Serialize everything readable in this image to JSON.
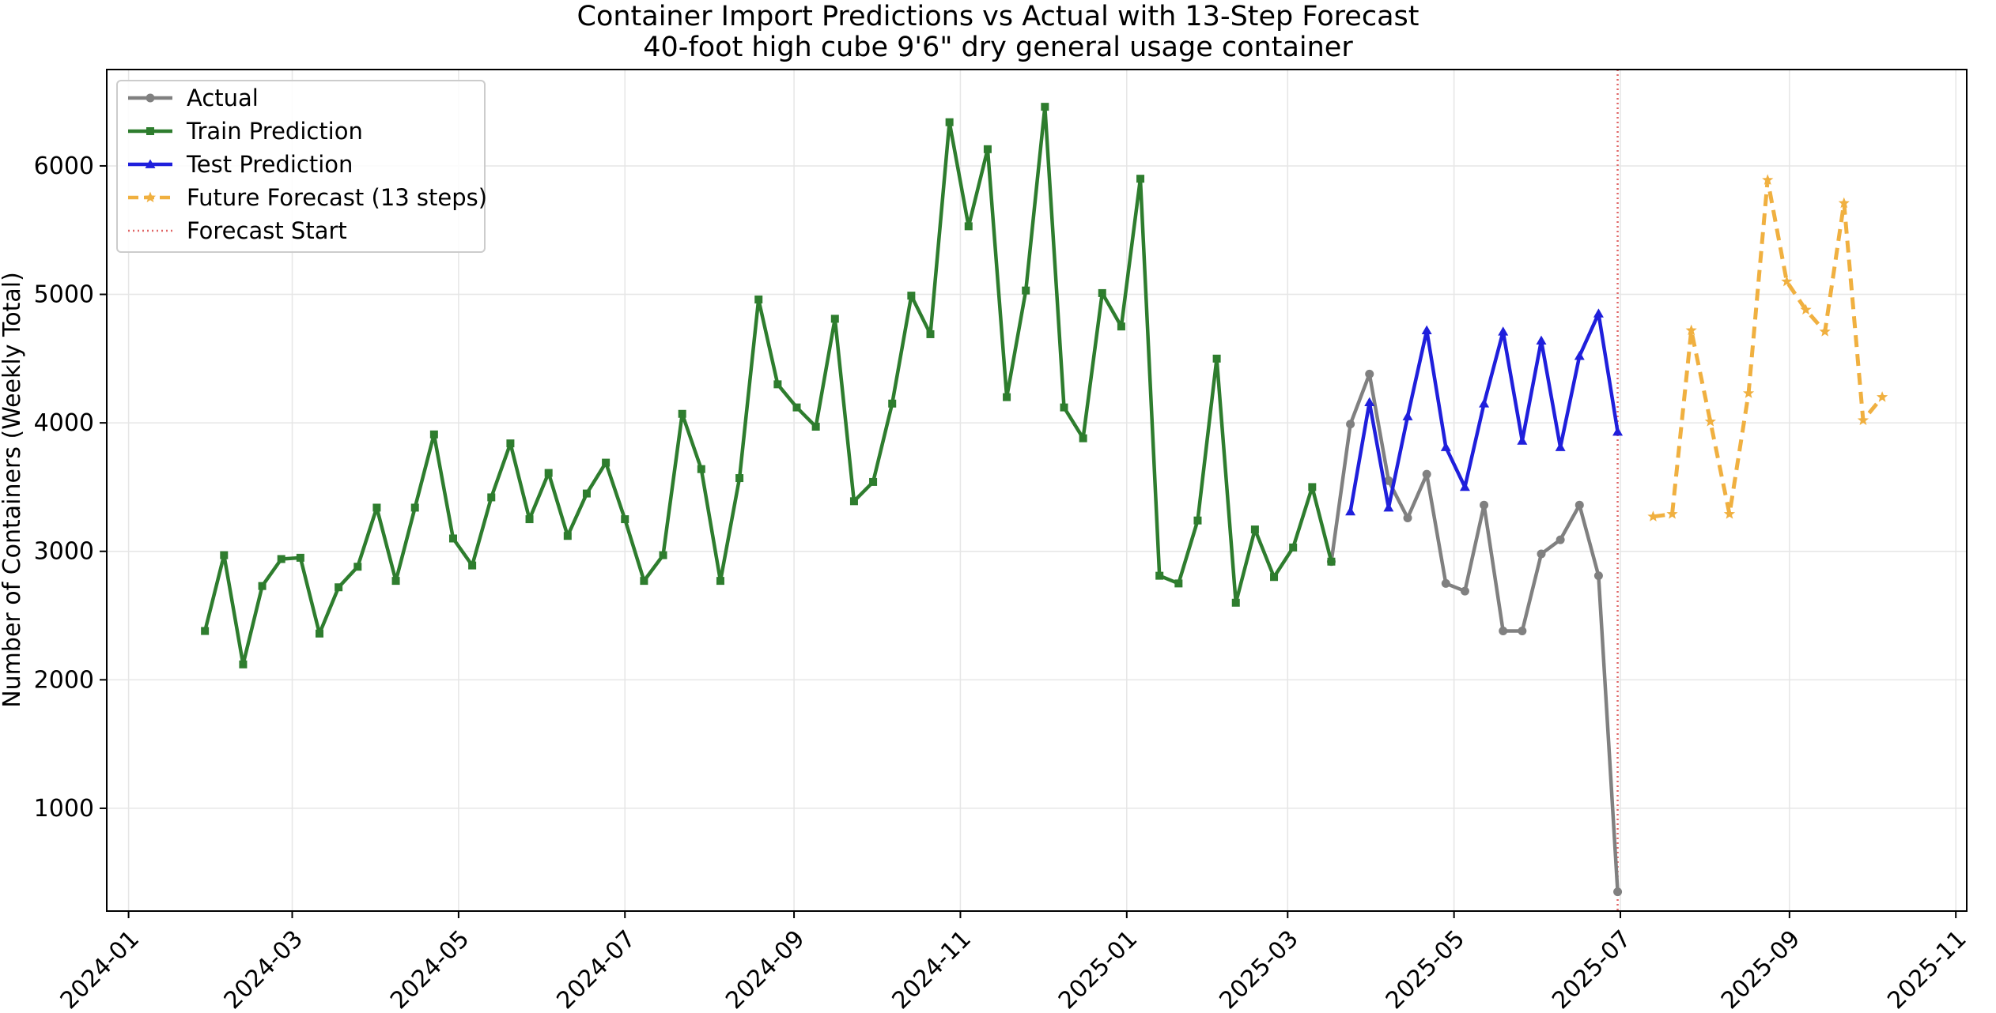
{
  "chart_data": {
    "type": "line",
    "title": "Container Import Predictions vs Actual with 13-Step Forecast",
    "subtitle": "40-foot high cube 9'6\" dry general usage container",
    "ylabel": "Number of Containers (Weekly Total)",
    "xlabel": "",
    "x_range": [
      "2023-12-24",
      "2025-11-05"
    ],
    "ylim": [
      200,
      6750
    ],
    "grid": true,
    "legend_position": "top-left",
    "x_ticks": [
      "2024-01",
      "2024-03",
      "2024-05",
      "2024-07",
      "2024-09",
      "2024-11",
      "2025-01",
      "2025-03",
      "2025-05",
      "2025-07",
      "2025-09",
      "2025-11"
    ],
    "y_ticks": [
      1000,
      2000,
      3000,
      4000,
      5000,
      6000
    ],
    "vline": {
      "label": "Forecast Start",
      "x": "2025-06-30",
      "color": "#e06666"
    },
    "series": [
      {
        "name": "Actual",
        "color": "#808080",
        "marker": "circle",
        "style": "solid",
        "points": [
          [
            "2025-03-17",
            2920
          ],
          [
            "2025-03-24",
            3990
          ],
          [
            "2025-03-31",
            4380
          ],
          [
            "2025-04-07",
            3550
          ],
          [
            "2025-04-14",
            3260
          ],
          [
            "2025-04-21",
            3600
          ],
          [
            "2025-04-28",
            2750
          ],
          [
            "2025-05-05",
            2690
          ],
          [
            "2025-05-12",
            3360
          ],
          [
            "2025-05-19",
            2380
          ],
          [
            "2025-05-26",
            2380
          ],
          [
            "2025-06-02",
            2980
          ],
          [
            "2025-06-09",
            3090
          ],
          [
            "2025-06-16",
            3360
          ],
          [
            "2025-06-23",
            2810
          ],
          [
            "2025-06-30",
            350
          ]
        ]
      },
      {
        "name": "Train Prediction",
        "color": "#2e7d2e",
        "marker": "square",
        "style": "solid",
        "points": [
          [
            "2024-01-29",
            2380
          ],
          [
            "2024-02-05",
            2970
          ],
          [
            "2024-02-12",
            2120
          ],
          [
            "2024-02-19",
            2730
          ],
          [
            "2024-02-26",
            2940
          ],
          [
            "2024-03-04",
            2950
          ],
          [
            "2024-03-11",
            2360
          ],
          [
            "2024-03-18",
            2720
          ],
          [
            "2024-03-25",
            2880
          ],
          [
            "2024-04-01",
            3340
          ],
          [
            "2024-04-08",
            2770
          ],
          [
            "2024-04-15",
            3340
          ],
          [
            "2024-04-22",
            3910
          ],
          [
            "2024-04-29",
            3100
          ],
          [
            "2024-05-06",
            2890
          ],
          [
            "2024-05-13",
            3420
          ],
          [
            "2024-05-20",
            3840
          ],
          [
            "2024-05-27",
            3250
          ],
          [
            "2024-06-03",
            3610
          ],
          [
            "2024-06-10",
            3120
          ],
          [
            "2024-06-17",
            3450
          ],
          [
            "2024-06-24",
            3690
          ],
          [
            "2024-07-01",
            3250
          ],
          [
            "2024-07-08",
            2770
          ],
          [
            "2024-07-15",
            2970
          ],
          [
            "2024-07-22",
            4070
          ],
          [
            "2024-07-29",
            3640
          ],
          [
            "2024-08-05",
            2770
          ],
          [
            "2024-08-12",
            3570
          ],
          [
            "2024-08-19",
            4960
          ],
          [
            "2024-08-26",
            4300
          ],
          [
            "2024-09-02",
            4120
          ],
          [
            "2024-09-09",
            3970
          ],
          [
            "2024-09-16",
            4810
          ],
          [
            "2024-09-23",
            3390
          ],
          [
            "2024-09-30",
            3540
          ],
          [
            "2024-10-07",
            4150
          ],
          [
            "2024-10-14",
            4990
          ],
          [
            "2024-10-21",
            4690
          ],
          [
            "2024-10-28",
            6340
          ],
          [
            "2024-11-04",
            5530
          ],
          [
            "2024-11-11",
            6130
          ],
          [
            "2024-11-18",
            4200
          ],
          [
            "2024-11-25",
            5030
          ],
          [
            "2024-12-02",
            6460
          ],
          [
            "2024-12-09",
            4120
          ],
          [
            "2024-12-16",
            3880
          ],
          [
            "2024-12-23",
            5010
          ],
          [
            "2024-12-30",
            4750
          ],
          [
            "2025-01-06",
            5900
          ],
          [
            "2025-01-13",
            2810
          ],
          [
            "2025-01-20",
            2750
          ],
          [
            "2025-01-27",
            3240
          ],
          [
            "2025-02-03",
            4500
          ],
          [
            "2025-02-10",
            2600
          ],
          [
            "2025-02-17",
            3170
          ],
          [
            "2025-02-24",
            2800
          ],
          [
            "2025-03-03",
            3030
          ],
          [
            "2025-03-10",
            3500
          ],
          [
            "2025-03-17",
            2920
          ]
        ]
      },
      {
        "name": "Test Prediction",
        "color": "#1f1fdc",
        "marker": "triangle",
        "style": "solid",
        "points": [
          [
            "2025-03-24",
            3310
          ],
          [
            "2025-03-31",
            4160
          ],
          [
            "2025-04-07",
            3340
          ],
          [
            "2025-04-14",
            4050
          ],
          [
            "2025-04-21",
            4720
          ],
          [
            "2025-04-28",
            3810
          ],
          [
            "2025-05-05",
            3500
          ],
          [
            "2025-05-12",
            4150
          ],
          [
            "2025-05-19",
            4710
          ],
          [
            "2025-05-26",
            3860
          ],
          [
            "2025-06-02",
            4640
          ],
          [
            "2025-06-09",
            3810
          ],
          [
            "2025-06-16",
            4520
          ],
          [
            "2025-06-23",
            4850
          ],
          [
            "2025-06-30",
            3930
          ]
        ]
      },
      {
        "name": "Future Forecast (13 steps)",
        "color": "#f0b040",
        "marker": "star",
        "style": "dashed",
        "points": [
          [
            "2025-07-13",
            3270
          ],
          [
            "2025-07-20",
            3290
          ],
          [
            "2025-07-27",
            4720
          ],
          [
            "2025-08-03",
            4010
          ],
          [
            "2025-08-10",
            3290
          ],
          [
            "2025-08-17",
            4230
          ],
          [
            "2025-08-24",
            5890
          ],
          [
            "2025-08-31",
            5100
          ],
          [
            "2025-09-07",
            4880
          ],
          [
            "2025-09-14",
            4710
          ],
          [
            "2025-09-21",
            5710
          ],
          [
            "2025-09-28",
            4020
          ],
          [
            "2025-10-05",
            4200
          ]
        ]
      }
    ]
  }
}
